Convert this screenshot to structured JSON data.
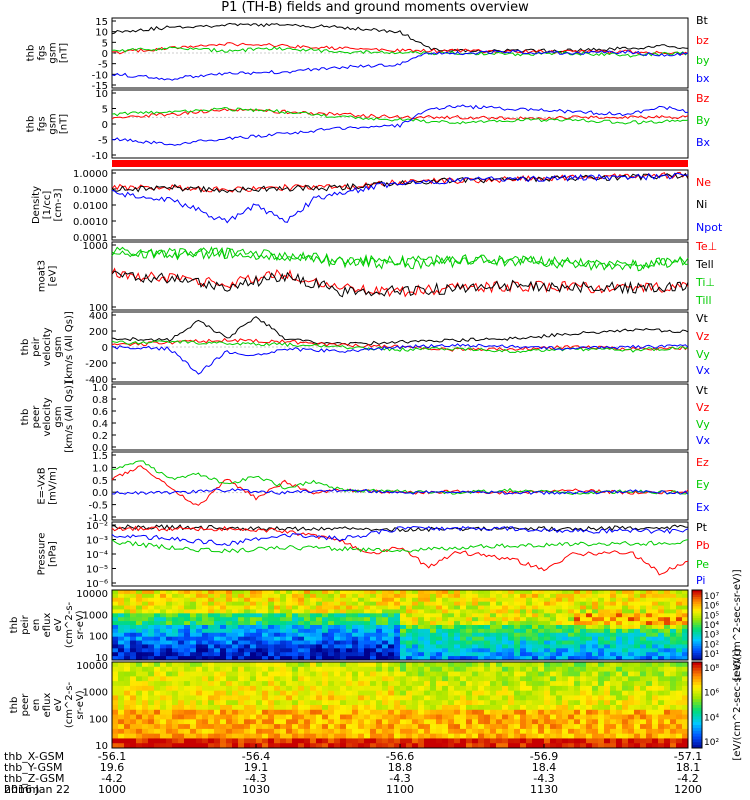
{
  "title": "P1 (TH-B) fields and ground moments overview",
  "date_label": "2016 Jan 22",
  "ephemeris": {
    "rows": [
      {
        "label": "thb_X-GSM",
        "values": [
          "-56.1",
          "-56.4",
          "-56.6",
          "-56.9",
          "-57.1"
        ]
      },
      {
        "label": "thb_Y-GSM",
        "values": [
          "19.6",
          "19.1",
          "18.8",
          "18.4",
          "18.1"
        ]
      },
      {
        "label": "thb_Z-GSM",
        "values": [
          "-4.2",
          "-4.3",
          "-4.3",
          "-4.3",
          "-4.2"
        ]
      },
      {
        "label": "hhmm",
        "values": [
          "1000",
          "1030",
          "1100",
          "1130",
          "1200"
        ]
      }
    ]
  },
  "colors": {
    "black": "#000000",
    "red": "#ff0000",
    "green": "#00cc00",
    "blue": "#0000ff"
  },
  "colorbar_labels": {
    "ion": "[eV/(cm^2-sec-sr-eV)]",
    "ion_right": "[eV/(cm^2-sec-sr-eV)]",
    "electron": "[eV/(cm^2-sec-sr-eV)]"
  },
  "chart_data": [
    {
      "type": "line",
      "ylabel_lines": [
        "thb",
        "fgs",
        "gsm",
        "[nT]"
      ],
      "ylim": [
        -15,
        15
      ],
      "yticks": [
        "15",
        "10",
        "5",
        "0",
        "-5",
        "-10",
        "-15"
      ],
      "series": [
        {
          "name": "Bt",
          "color": "black",
          "x": [
            0,
            0.05,
            0.1,
            0.2,
            0.3,
            0.4,
            0.5,
            0.55,
            0.6,
            0.7,
            0.8,
            0.9,
            0.95,
            1
          ],
          "values": [
            9,
            10,
            11,
            12,
            12,
            11,
            9,
            2,
            1,
            1,
            1,
            2,
            3,
            2
          ]
        },
        {
          "name": "bz",
          "color": "red",
          "x": [
            0,
            0.1,
            0.2,
            0.3,
            0.4,
            0.5,
            0.6,
            0.7,
            0.8,
            0.9,
            1
          ],
          "values": [
            0,
            2,
            4,
            3,
            2,
            1,
            1,
            0.5,
            0.5,
            0.5,
            0
          ]
        },
        {
          "name": "by",
          "color": "green",
          "x": [
            0,
            0.1,
            0.2,
            0.3,
            0.4,
            0.5,
            0.6,
            0.7,
            0.8,
            0.9,
            1
          ],
          "values": [
            1,
            2,
            1,
            2,
            0.5,
            0,
            0,
            -0.5,
            0,
            -1,
            0
          ]
        },
        {
          "name": "bx",
          "color": "blue",
          "x": [
            0,
            0.05,
            0.1,
            0.2,
            0.3,
            0.4,
            0.5,
            0.55,
            0.6,
            0.7,
            0.8,
            0.9,
            0.95,
            1
          ],
          "values": [
            -9,
            -10,
            -11,
            -9,
            -8,
            -6,
            -5,
            0,
            0,
            0.5,
            0,
            0.5,
            -1,
            0
          ]
        }
      ]
    },
    {
      "type": "line",
      "ylabel_lines": [
        "thb",
        "fgs",
        "gsm",
        "[nT]"
      ],
      "ylim": [
        -15,
        10
      ],
      "yticks": [
        "10",
        "5",
        "0",
        "-5",
        "-10"
      ],
      "series": [
        {
          "name": "Bz",
          "color": "red",
          "x": [
            0,
            0.1,
            0.2,
            0.3,
            0.4,
            0.5,
            0.6,
            0.7,
            0.8,
            0.9,
            1
          ],
          "values": [
            0,
            1,
            3,
            2,
            1,
            0,
            0,
            -0.5,
            0,
            0,
            0
          ]
        },
        {
          "name": "By",
          "color": "green",
          "x": [
            0,
            0.1,
            0.2,
            0.3,
            0.4,
            0.5,
            0.6,
            0.7,
            0.8,
            0.9,
            1
          ],
          "values": [
            1,
            2,
            3,
            2,
            0,
            -1,
            -2,
            -1,
            -1,
            -2,
            -1
          ]
        },
        {
          "name": "Bx",
          "color": "blue",
          "x": [
            0,
            0.05,
            0.1,
            0.2,
            0.3,
            0.4,
            0.5,
            0.55,
            0.6,
            0.7,
            0.8,
            0.9,
            0.95,
            1
          ],
          "values": [
            -8,
            -9,
            -10,
            -8,
            -6,
            -4,
            -3,
            3,
            4,
            3,
            2,
            1,
            4,
            2
          ]
        }
      ]
    },
    {
      "type": "line",
      "ylabel_lines": [
        "Density",
        "[1/cc]",
        "[cm-3]"
      ],
      "ylim": [
        0.0001,
        1
      ],
      "scale": "log",
      "yticks": [
        "1.0000",
        "0.1000",
        "0.0100",
        "0.0010",
        "0.0001"
      ],
      "series": [
        {
          "name": "Ne",
          "color": "red",
          "x": [
            0,
            0.1,
            0.2,
            0.3,
            0.4,
            0.5,
            0.6,
            0.7,
            0.8,
            0.9,
            1
          ],
          "values": [
            0.1,
            0.1,
            0.08,
            0.1,
            0.1,
            0.2,
            0.25,
            0.3,
            0.4,
            0.45,
            0.5
          ]
        },
        {
          "name": "Ni",
          "color": "black",
          "x": [
            0,
            0.1,
            0.2,
            0.3,
            0.4,
            0.5,
            0.6,
            0.7,
            0.8,
            0.9,
            1
          ],
          "values": [
            0.08,
            0.1,
            0.07,
            0.09,
            0.1,
            0.2,
            0.25,
            0.3,
            0.35,
            0.4,
            0.45
          ]
        },
        {
          "name": "Npot",
          "color": "blue",
          "x": [
            0,
            0.1,
            0.15,
            0.2,
            0.25,
            0.3,
            0.35,
            0.4,
            0.5,
            0.6,
            0.7,
            0.8,
            0.9,
            1
          ],
          "values": [
            0.05,
            0.02,
            0.005,
            0.001,
            0.01,
            0.001,
            0.02,
            0.05,
            0.2,
            0.25,
            0.3,
            0.35,
            0.4,
            0.45
          ]
        }
      ]
    },
    {
      "type": "line",
      "ylabel_lines": [
        "moat3",
        "[eV]"
      ],
      "ylim": [
        20,
        3000
      ],
      "scale": "log",
      "yticks": [
        "1000",
        "100"
      ],
      "series": [
        {
          "name": "Te⊥",
          "color": "red",
          "x": [
            0,
            0.1,
            0.2,
            0.3,
            0.4,
            0.5,
            0.6,
            0.7,
            0.8,
            0.9,
            1
          ],
          "values": [
            300,
            200,
            150,
            300,
            100,
            80,
            100,
            120,
            110,
            100,
            110
          ]
        },
        {
          "name": "Tell",
          "color": "black",
          "x": [
            0,
            0.1,
            0.2,
            0.3,
            0.4,
            0.5,
            0.6,
            0.7,
            0.8,
            0.9,
            1
          ],
          "values": [
            250,
            200,
            100,
            250,
            80,
            80,
            100,
            120,
            110,
            100,
            110
          ]
        },
        {
          "name": "Ti⊥",
          "color": "green",
          "x": [
            0,
            0.1,
            0.2,
            0.3,
            0.4,
            0.5,
            0.6,
            0.7,
            0.8,
            0.9,
            1
          ],
          "values": [
            1500,
            1200,
            1300,
            1000,
            700,
            600,
            700,
            700,
            600,
            500,
            700
          ]
        },
        {
          "name": "Till",
          "color": "green",
          "x": [
            0,
            0.1,
            0.2,
            0.3,
            0.4,
            0.5,
            0.6,
            0.7,
            0.8,
            0.9,
            1
          ],
          "values": [
            1500,
            1300,
            1400,
            1100,
            800,
            700,
            800,
            750,
            650,
            550,
            800
          ]
        }
      ]
    },
    {
      "type": "line",
      "ylabel_lines": [
        "thb",
        "peir",
        "velocity",
        "gsm",
        "[km/s (All Qs)]"
      ],
      "ylim": [
        -400,
        400
      ],
      "yticks": [
        "400",
        "200",
        "0",
        "-200",
        "-400"
      ],
      "series": [
        {
          "name": "Vt",
          "color": "black",
          "x": [
            0,
            0.1,
            0.15,
            0.2,
            0.25,
            0.3,
            0.35,
            0.4,
            0.5,
            0.6,
            0.7,
            0.8,
            0.9,
            1
          ],
          "values": [
            100,
            80,
            300,
            100,
            350,
            100,
            50,
            30,
            60,
            80,
            100,
            150,
            200,
            180
          ]
        },
        {
          "name": "Vz",
          "color": "red",
          "x": [
            0,
            0.1,
            0.2,
            0.3,
            0.4,
            0.5,
            0.6,
            0.7,
            0.8,
            0.9,
            1
          ],
          "values": [
            20,
            50,
            80,
            60,
            20,
            0,
            -30,
            -20,
            0,
            -20,
            -10
          ]
        },
        {
          "name": "Vy",
          "color": "green",
          "x": [
            0,
            0.1,
            0.2,
            0.3,
            0.4,
            0.5,
            0.6,
            0.7,
            0.8,
            0.9,
            1
          ],
          "values": [
            50,
            60,
            40,
            30,
            0,
            -30,
            -20,
            -50,
            -20,
            -40,
            0
          ]
        },
        {
          "name": "Vx",
          "color": "blue",
          "x": [
            0,
            0.1,
            0.15,
            0.2,
            0.25,
            0.3,
            0.4,
            0.5,
            0.6,
            0.7,
            0.8,
            0.9,
            1
          ],
          "values": [
            0,
            -20,
            -300,
            -50,
            -100,
            -20,
            -50,
            0,
            20,
            0,
            -20,
            0,
            10
          ]
        }
      ]
    },
    {
      "type": "line",
      "ylabel_lines": [
        "thb",
        "peer",
        "velocity",
        "gsm",
        "[km/s (All Qs)]"
      ],
      "ylim": [
        0,
        1
      ],
      "yticks": [
        "1.0",
        "0.8",
        "0.6",
        "0.4",
        "0.2",
        "0.0"
      ],
      "series": [
        {
          "name": "Vt",
          "color": "black",
          "x": [],
          "values": []
        },
        {
          "name": "Vz",
          "color": "red",
          "x": [],
          "values": []
        },
        {
          "name": "Vy",
          "color": "green",
          "x": [],
          "values": []
        },
        {
          "name": "Vx",
          "color": "blue",
          "x": [],
          "values": []
        }
      ]
    },
    {
      "type": "line",
      "ylabel_lines": [
        "E=-VxB",
        "[mV/m]"
      ],
      "ylim": [
        -1,
        1.5
      ],
      "yticks": [
        "1.5",
        "1.0",
        "0.5",
        "0.0",
        "-0.5",
        "-1.0"
      ],
      "series": [
        {
          "name": "Ez",
          "color": "red",
          "x": [
            0,
            0.05,
            0.1,
            0.15,
            0.2,
            0.25,
            0.3,
            0.35,
            0.4,
            0.5,
            0.6,
            0.7,
            0.8,
            0.9,
            1
          ],
          "values": [
            0.5,
            1.0,
            0.2,
            -0.5,
            0.5,
            -0.2,
            0.4,
            0,
            0.1,
            0,
            0.05,
            0,
            0.1,
            0,
            0.05
          ]
        },
        {
          "name": "Ey",
          "color": "green",
          "x": [
            0,
            0.05,
            0.1,
            0.15,
            0.2,
            0.25,
            0.3,
            0.35,
            0.4,
            0.5,
            0.6,
            0.7,
            0.8,
            0.9,
            1
          ],
          "values": [
            0.8,
            1.2,
            0.5,
            0.7,
            0.3,
            0.6,
            0.2,
            0.4,
            0.1,
            0.05,
            0,
            0.1,
            0,
            0.05,
            0
          ]
        },
        {
          "name": "Ex",
          "color": "blue",
          "x": [
            0,
            0.1,
            0.2,
            0.3,
            0.4,
            0.5,
            0.6,
            0.7,
            0.8,
            0.9,
            1
          ],
          "values": [
            0,
            0,
            0.1,
            0,
            0.1,
            0,
            0.05,
            0,
            0,
            0.05,
            0
          ]
        }
      ]
    },
    {
      "type": "line",
      "ylabel_lines": [
        "Pressure",
        "[nPa]"
      ],
      "ylim": [
        1e-06,
        0.1
      ],
      "scale": "log",
      "yticks": [
        "10⁻²",
        "10⁻³",
        "10⁻⁴",
        "10⁻⁵",
        "10⁻⁶"
      ],
      "series": [
        {
          "name": "Pt",
          "color": "black",
          "x": [
            0,
            0.1,
            0.2,
            0.3,
            0.4,
            0.5,
            0.6,
            0.7,
            0.8,
            0.9,
            1
          ],
          "values": [
            0.04,
            0.04,
            0.035,
            0.03,
            0.03,
            0.025,
            0.03,
            0.03,
            0.03,
            0.035,
            0.04
          ]
        },
        {
          "name": "Pb",
          "color": "red",
          "x": [
            0,
            0.1,
            0.2,
            0.3,
            0.4,
            0.45,
            0.5,
            0.55,
            0.6,
            0.7,
            0.75,
            0.8,
            0.9,
            0.95,
            1
          ],
          "values": [
            0.03,
            0.03,
            0.03,
            0.02,
            0.003,
            0.0003,
            0.001,
            3e-05,
            0.0005,
            0.0001,
            2e-05,
            0.0003,
            0.0005,
            1e-05,
            0.0001
          ]
        },
        {
          "name": "Pe",
          "color": "green",
          "x": [
            0,
            0.1,
            0.2,
            0.3,
            0.4,
            0.5,
            0.6,
            0.7,
            0.8,
            0.9,
            1
          ],
          "values": [
            0.003,
            0.001,
            0.0005,
            0.001,
            0.0008,
            0.0005,
            0.001,
            0.0015,
            0.002,
            0.002,
            0.003
          ]
        },
        {
          "name": "Pi",
          "color": "blue",
          "x": [
            0,
            0.1,
            0.2,
            0.3,
            0.4,
            0.5,
            0.6,
            0.7,
            0.8,
            0.9,
            1
          ],
          "values": [
            0.01,
            0.005,
            0.002,
            0.01,
            0.005,
            0.03,
            0.03,
            0.03,
            0.02,
            0.02,
            0.02
          ]
        }
      ]
    },
    {
      "type": "heatmap",
      "ylabel_lines": [
        "thb",
        "peir",
        "en",
        "eflux",
        "eV",
        "(cm^2-s-",
        "sr-eV)"
      ],
      "ylim": [
        5,
        20000
      ],
      "scale": "log",
      "yticks": [
        "10000",
        "1000",
        "100",
        "10"
      ],
      "colorbar_ticks": [
        "10⁷",
        "10⁶",
        "10⁵",
        "10⁴",
        "10³",
        "10²",
        "10¹"
      ]
    },
    {
      "type": "heatmap",
      "ylabel_lines": [
        "thb",
        "peer",
        "en",
        "eflux",
        "eV",
        "(cm^2-s-",
        "sr-eV)"
      ],
      "ylim": [
        5,
        20000
      ],
      "scale": "log",
      "yticks": [
        "10000",
        "1000",
        "100",
        "10"
      ],
      "colorbar_ticks": [
        "10⁸",
        "10⁶",
        "10⁴",
        "10²"
      ]
    }
  ]
}
